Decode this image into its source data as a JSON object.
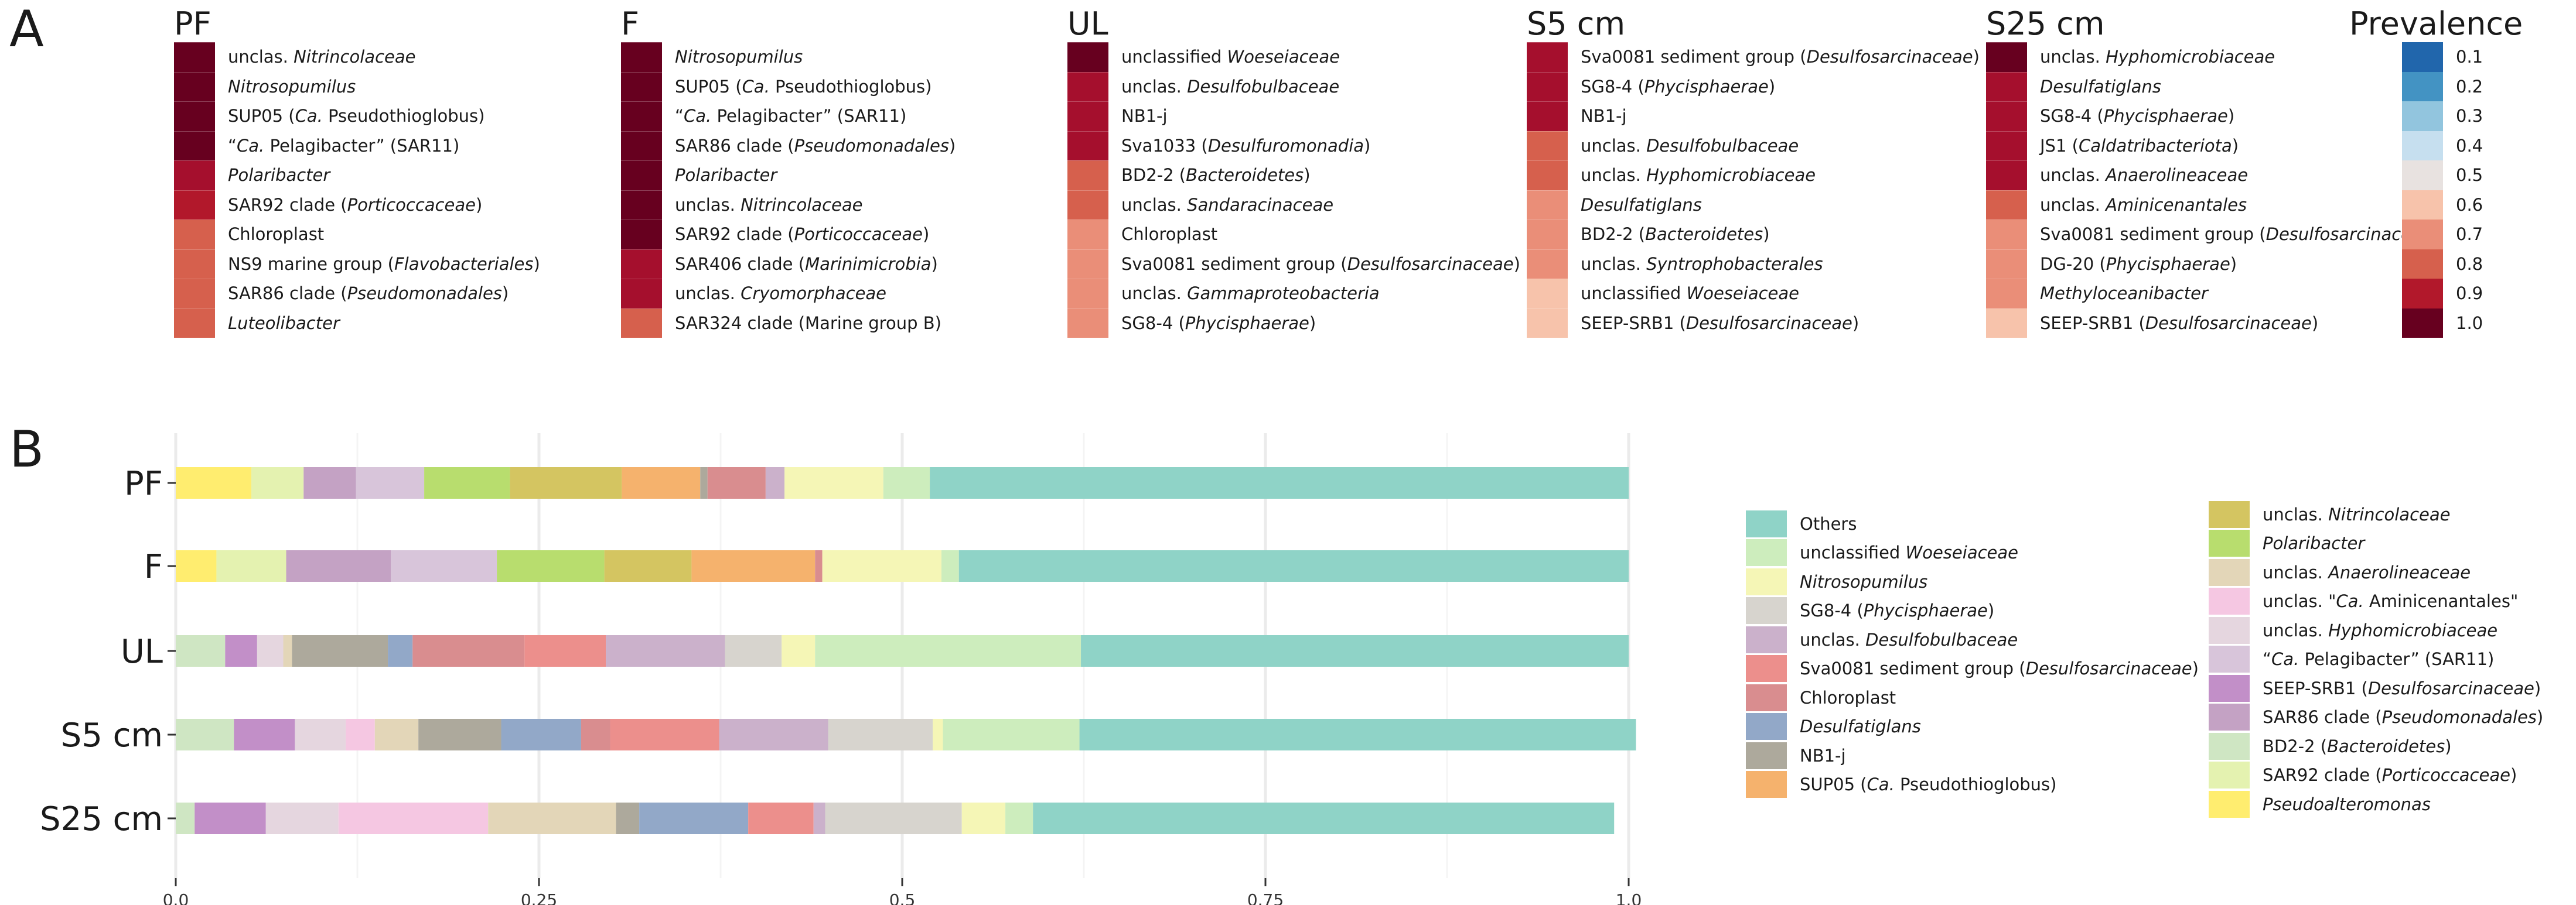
{
  "panel_a": {
    "label": "A",
    "columns": [
      {
        "title": "PF",
        "rows": [
          {
            "pre": "unclas. ",
            "it": "Nitrincolaceae",
            "post": "",
            "color": "#67001f"
          },
          {
            "pre": "",
            "it": "Nitrosopumilus",
            "post": "",
            "color": "#67001f"
          },
          {
            "pre": "SUP05 (",
            "it": "Ca.",
            "post": " Pseudothioglobus)",
            "color": "#67001f"
          },
          {
            "pre": "“",
            "it": "Ca.",
            "post": " Pelagibacter” (SAR11)",
            "color": "#67001f"
          },
          {
            "pre": "",
            "it": "Polaribacter",
            "post": "",
            "color": "#a50f2d"
          },
          {
            "pre": "SAR92 clade (",
            "it": "Porticoccaceae",
            "post": ")",
            "color": "#b2182b"
          },
          {
            "pre": "Chloroplast",
            "it": "",
            "post": "",
            "color": "#d6604d"
          },
          {
            "pre": "NS9 marine group (",
            "it": "Flavobacteriales",
            "post": ")",
            "color": "#d6604d"
          },
          {
            "pre": "SAR86 clade (",
            "it": "Pseudomonadales",
            "post": ")",
            "color": "#d6604d"
          },
          {
            "pre": "",
            "it": "Luteolibacter",
            "post": "",
            "color": "#d6604d"
          }
        ]
      },
      {
        "title": "F",
        "rows": [
          {
            "pre": "",
            "it": "Nitrosopumilus",
            "post": "",
            "color": "#67001f"
          },
          {
            "pre": "SUP05 (",
            "it": "Ca.",
            "post": " Pseudothioglobus)",
            "color": "#67001f"
          },
          {
            "pre": "“",
            "it": "Ca.",
            "post": " Pelagibacter” (SAR11)",
            "color": "#67001f"
          },
          {
            "pre": "SAR86 clade (",
            "it": "Pseudomonadales",
            "post": ")",
            "color": "#67001f"
          },
          {
            "pre": "",
            "it": "Polaribacter",
            "post": "",
            "color": "#67001f"
          },
          {
            "pre": "unclas. ",
            "it": "Nitrincolaceae",
            "post": "",
            "color": "#67001f"
          },
          {
            "pre": "SAR92 clade (",
            "it": "Porticoccaceae",
            "post": ")",
            "color": "#67001f"
          },
          {
            "pre": "SAR406 clade (",
            "it": "Marinimicrobia",
            "post": ")",
            "color": "#a50f2d"
          },
          {
            "pre": "unclas. ",
            "it": "Cryomorphaceae",
            "post": "",
            "color": "#a50f2d"
          },
          {
            "pre": "SAR324 clade (Marine group B)",
            "it": "",
            "post": "",
            "color": "#d6604d"
          }
        ]
      },
      {
        "title": "UL",
        "rows": [
          {
            "pre": "unclassified ",
            "it": "Woeseiaceae",
            "post": "",
            "color": "#67001f"
          },
          {
            "pre": "unclas. ",
            "it": "Desulfobulbaceae",
            "post": "",
            "color": "#a50f2d"
          },
          {
            "pre": "NB1-j",
            "it": "",
            "post": "",
            "color": "#a50f2d"
          },
          {
            "pre": "Sva1033 (",
            "it": "Desulfuromonadia",
            "post": ")",
            "color": "#a50f2d"
          },
          {
            "pre": "BD2-2 (",
            "it": "Bacteroidetes",
            "post": ")",
            "color": "#d6604d"
          },
          {
            "pre": "unclas. ",
            "it": "Sandaracinaceae",
            "post": "",
            "color": "#d6604d"
          },
          {
            "pre": "Chloroplast",
            "it": "",
            "post": "",
            "color": "#ea8e78"
          },
          {
            "pre": "Sva0081 sediment group (",
            "it": "Desulfosarcinaceae",
            "post": ")",
            "color": "#ea8e78"
          },
          {
            "pre": "unclas. ",
            "it": "Gammaproteobacteria",
            "post": "",
            "color": "#ea8e78"
          },
          {
            "pre": "SG8-4 (",
            "it": "Phycisphaerae",
            "post": ")",
            "color": "#ea8e78"
          }
        ]
      },
      {
        "title": "S5 cm",
        "rows": [
          {
            "pre": "Sva0081 sediment group (",
            "it": "Desulfosarcinaceae",
            "post": ")",
            "color": "#a50f2d"
          },
          {
            "pre": "SG8-4 (",
            "it": "Phycisphaerae",
            "post": ")",
            "color": "#a50f2d"
          },
          {
            "pre": "NB1-j",
            "it": "",
            "post": "",
            "color": "#a50f2d"
          },
          {
            "pre": "unclas. ",
            "it": "Desulfobulbaceae",
            "post": "",
            "color": "#d6604d"
          },
          {
            "pre": "unclas. ",
            "it": "Hyphomicrobiaceae",
            "post": "",
            "color": "#d6604d"
          },
          {
            "pre": "",
            "it": "Desulfatiglans",
            "post": "",
            "color": "#ea8e78"
          },
          {
            "pre": "BD2-2 (",
            "it": "Bacteroidetes",
            "post": ")",
            "color": "#ea8e78"
          },
          {
            "pre": "unclas. ",
            "it": "Syntrophobacterales",
            "post": "",
            "color": "#ea8e78"
          },
          {
            "pre": "unclassified ",
            "it": "Woeseiaceae",
            "post": "",
            "color": "#f7c3ab"
          },
          {
            "pre": "SEEP-SRB1 (",
            "it": "Desulfosarcinaceae",
            "post": ")",
            "color": "#f7c3ab"
          }
        ]
      },
      {
        "title": "S25 cm",
        "rows": [
          {
            "pre": "unclas. ",
            "it": "Hyphomicrobiaceae",
            "post": "",
            "color": "#67001f"
          },
          {
            "pre": "",
            "it": "Desulfatiglans",
            "post": "",
            "color": "#a50f2d"
          },
          {
            "pre": "SG8-4 (",
            "it": "Phycisphaerae",
            "post": ")",
            "color": "#a50f2d"
          },
          {
            "pre": "JS1 (",
            "it": "Caldatribacteriota",
            "post": ")",
            "color": "#a50f2d"
          },
          {
            "pre": "unclas. ",
            "it": "Anaerolineaceae",
            "post": "",
            "color": "#a50f2d"
          },
          {
            "pre": "unclas. ",
            "it": "Aminicenantales",
            "post": "",
            "color": "#d6604d"
          },
          {
            "pre": "Sva0081 sediment group (",
            "it": "Desulfosarcinaceae",
            "post": ")",
            "color": "#ea8e78"
          },
          {
            "pre": "DG-20 (",
            "it": "Phycisphaerae",
            "post": ")",
            "color": "#ea8e78"
          },
          {
            "pre": "",
            "it": "Methyloceanibacter",
            "post": "",
            "color": "#ea8e78"
          },
          {
            "pre": "SEEP-SRB1 (",
            "it": "Desulfosarcinaceae",
            "post": ")",
            "color": "#f7c3ab"
          }
        ]
      }
    ],
    "prevalence": {
      "title": "Prevalence",
      "levels": [
        {
          "value": "0.1",
          "color": "#2166ac"
        },
        {
          "value": "0.2",
          "color": "#4393c3"
        },
        {
          "value": "0.3",
          "color": "#92c5de"
        },
        {
          "value": "0.4",
          "color": "#c6dfef"
        },
        {
          "value": "0.5",
          "color": "#e8e2e0"
        },
        {
          "value": "0.6",
          "color": "#f7c3ab"
        },
        {
          "value": "0.7",
          "color": "#ea8e78"
        },
        {
          "value": "0.8",
          "color": "#d6604d"
        },
        {
          "value": "0.9",
          "color": "#b2182b"
        },
        {
          "value": "1.0",
          "color": "#67001f"
        }
      ]
    }
  },
  "chart_data": {
    "type": "bar",
    "orientation": "horizontal",
    "stacked": true,
    "panel_label": "B",
    "categories": [
      "PF",
      "F",
      "UL",
      "S5 cm",
      "S25 cm"
    ],
    "xlim": [
      0,
      1.0
    ],
    "xticks": [
      "0.0",
      "0.25",
      "0.5",
      "0.75",
      "1.0"
    ],
    "xtick_values": [
      0,
      0.25,
      0.5,
      0.75,
      1.0
    ],
    "grid": true,
    "series": [
      {
        "name": "Pseudoalteromonas",
        "color": "#ffed6f",
        "values": [
          0.052,
          0.028,
          0,
          0,
          0
        ]
      },
      {
        "name": "SAR92 clade (Porticoccaceae)",
        "color": "#e4f2b0",
        "values": [
          0.036,
          0.048,
          0,
          0,
          0
        ]
      },
      {
        "name": "BD2-2 (Bacteroidetes)",
        "color": "#cfe6c3",
        "values": [
          0,
          0,
          0.034,
          0.04,
          0.013
        ]
      },
      {
        "name": "SAR86 clade (Pseudomonadales)",
        "color": "#c4a2c4",
        "values": [
          0.036,
          0.072,
          0,
          0,
          0
        ]
      },
      {
        "name": "SEEP-SRB1 (Desulfosarcinaceae)",
        "color": "#c28fc8",
        "values": [
          0,
          0,
          0.022,
          0.042,
          0.049
        ]
      },
      {
        "name": "“Ca. Pelagibacter” (SAR11)",
        "color": "#d8c5da",
        "values": [
          0.047,
          0.073,
          0,
          0,
          0
        ]
      },
      {
        "name": "unclas. Hyphomicrobiaceae",
        "color": "#e5d6df",
        "values": [
          0,
          0,
          0.018,
          0.035,
          0.05
        ]
      },
      {
        "name": "unclas. “Ca. Aminicenantales”",
        "color": "#f5c7e2",
        "values": [
          0,
          0,
          0,
          0.02,
          0.103
        ]
      },
      {
        "name": "unclas. Anaerolineaceae",
        "color": "#e3d6b8",
        "values": [
          0,
          0,
          0.006,
          0.03,
          0.088
        ]
      },
      {
        "name": "Polaribacter",
        "color": "#b8dd6e",
        "values": [
          0.059,
          0.074,
          0,
          0,
          0
        ]
      },
      {
        "name": "unclas. Nitrincolaceae",
        "color": "#d4c561",
        "values": [
          0.077,
          0.06,
          0,
          0,
          0
        ]
      },
      {
        "name": "SUP05 (Ca. Pseudothioglobus)",
        "color": "#f5b26d",
        "values": [
          0.054,
          0.085,
          0,
          0,
          0
        ]
      },
      {
        "name": "NB1-j",
        "color": "#ada99c",
        "values": [
          0.005,
          0,
          0.066,
          0.057,
          0.016
        ]
      },
      {
        "name": "Desulfatiglans",
        "color": "#92a8c8",
        "values": [
          0,
          0,
          0.017,
          0.055,
          0.075
        ]
      },
      {
        "name": "Chloroplast",
        "color": "#d98d8f",
        "values": [
          0.04,
          0.005,
          0.077,
          0.02,
          0
        ]
      },
      {
        "name": "Sva0081 sediment group (Desulfosarcinaceae)",
        "color": "#ec8f8c",
        "values": [
          0,
          0,
          0.056,
          0.075,
          0.045
        ]
      },
      {
        "name": "unclas. Desulfobulbaceae",
        "color": "#cbb1cb",
        "values": [
          0.013,
          0,
          0.082,
          0.075,
          0.008
        ]
      },
      {
        "name": "SG8-4 (Phycisphaerae)",
        "color": "#d7d4ce",
        "values": [
          0,
          0,
          0.039,
          0.072,
          0.094
        ]
      },
      {
        "name": "Nitrosopumilus",
        "color": "#f5f6b6",
        "values": [
          0.068,
          0.082,
          0.023,
          0.007,
          0.03
        ]
      },
      {
        "name": "unclassified Woeseiaceae",
        "color": "#cdedbd",
        "values": [
          0.032,
          0.012,
          0.183,
          0.094,
          0.019
        ]
      },
      {
        "name": "Others",
        "color": "#8fd3c7",
        "values": [
          0.481,
          0.461,
          0.377,
          0.383,
          0.4
        ]
      }
    ]
  },
  "legend": {
    "left": [
      {
        "pre": "Others",
        "it": "",
        "post": "",
        "color": "#8fd3c7"
      },
      {
        "pre": "unclassified ",
        "it": "Woeseiaceae",
        "post": "",
        "color": "#cdedbd"
      },
      {
        "pre": "",
        "it": "Nitrosopumilus",
        "post": "",
        "color": "#f5f6b6"
      },
      {
        "pre": "SG8-4 (",
        "it": "Phycisphaerae",
        "post": ")",
        "color": "#d7d4ce"
      },
      {
        "pre": "unclas. ",
        "it": "Desulfobulbaceae",
        "post": "",
        "color": "#cbb1cb"
      },
      {
        "pre": "Sva0081 sediment group (",
        "it": "Desulfosarcinaceae",
        "post": ")",
        "color": "#ec8f8c"
      },
      {
        "pre": "Chloroplast",
        "it": "",
        "post": "",
        "color": "#d98d8f"
      },
      {
        "pre": "",
        "it": "Desulfatiglans",
        "post": "",
        "color": "#92a8c8"
      },
      {
        "pre": "NB1-j",
        "it": "",
        "post": "",
        "color": "#ada99c"
      },
      {
        "pre": "SUP05 (",
        "it": "Ca.",
        "post": " Pseudothioglobus)",
        "color": "#f5b26d"
      }
    ],
    "right": [
      {
        "pre": "unclas. ",
        "it": "Nitrincolaceae",
        "post": "",
        "color": "#d4c561"
      },
      {
        "pre": "",
        "it": "Polaribacter",
        "post": "",
        "color": "#b8dd6e"
      },
      {
        "pre": "unclas. ",
        "it": "Anaerolineaceae",
        "post": "",
        "color": "#e3d6b8"
      },
      {
        "pre": "unclas. \"",
        "it": "Ca.",
        "post": " Aminicenantales\"",
        "color": "#f5c7e2"
      },
      {
        "pre": "unclas. ",
        "it": "Hyphomicrobiaceae",
        "post": "",
        "color": "#e5d6df"
      },
      {
        "pre": "“",
        "it": "Ca.",
        "post": " Pelagibacter” (SAR11)",
        "color": "#d8c5da"
      },
      {
        "pre": "SEEP-SRB1 (",
        "it": "Desulfosarcinaceae",
        "post": ")",
        "color": "#c28fc8"
      },
      {
        "pre": "SAR86 clade (",
        "it": "Pseudomonadales",
        "post": ")",
        "color": "#c4a2c4"
      },
      {
        "pre": "BD2-2 (",
        "it": "Bacteroidetes",
        "post": ")",
        "color": "#cfe6c3"
      },
      {
        "pre": "SAR92 clade (",
        "it": "Porticoccaceae",
        "post": ")",
        "color": "#e4f2b0"
      },
      {
        "pre": "",
        "it": "Pseudoalteromonas",
        "post": "",
        "color": "#ffed6f"
      }
    ]
  }
}
